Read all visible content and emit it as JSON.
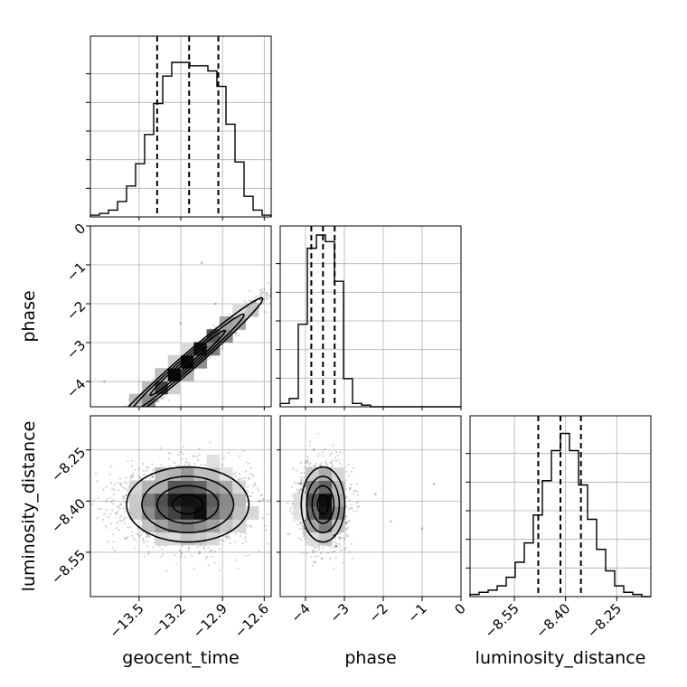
{
  "chart_data": {
    "type": "corner",
    "parameters": [
      {
        "name": "geocent_time",
        "label": "geocent_time",
        "range": [
          -13.85,
          -12.55
        ],
        "ticks": [
          -13.5,
          -13.2,
          -12.9,
          -12.6
        ],
        "tick_labels": [
          "−13.5",
          "−13.2",
          "−12.9",
          "−12.6"
        ],
        "quantiles": [
          -13.37,
          -13.14,
          -12.93
        ],
        "hist": [
          1,
          2,
          4,
          9,
          18,
          31,
          48,
          66,
          82,
          90,
          90,
          88,
          88,
          85,
          76,
          54,
          32,
          12,
          4,
          1
        ],
        "hist_max": 100
      },
      {
        "name": "phase",
        "label": "phase",
        "range": [
          -4.65,
          0.0
        ],
        "ticks": [
          -4,
          -3,
          -2,
          -1,
          0
        ],
        "tick_labels": [
          "−4",
          "−3",
          "−2",
          "−1",
          "0"
        ],
        "quantiles": [
          -3.85,
          -3.55,
          -3.25
        ],
        "hist": [
          2,
          5,
          50,
          96,
          104,
          100,
          76,
          17,
          2,
          1,
          0,
          0,
          0,
          0,
          0,
          0,
          0,
          0,
          0,
          0
        ],
        "hist_max": 104
      },
      {
        "name": "luminosity_distance",
        "label": "luminosity_distance",
        "range": [
          -8.68,
          -8.15
        ],
        "ticks": [
          -8.55,
          -8.4,
          -8.25
        ],
        "tick_labels": [
          "−8.55",
          "−8.40",
          "−8.25"
        ],
        "quantiles": [
          -8.48,
          -8.415,
          -8.355
        ],
        "hist": [
          1,
          2,
          3,
          5,
          9,
          16,
          25,
          38,
          54,
          68,
          76,
          68,
          52,
          36,
          22,
          12,
          5,
          2,
          1,
          0
        ],
        "hist_max": 80
      }
    ],
    "pairs": [
      {
        "x": "geocent_time",
        "y": "phase",
        "mean": [
          -13.15,
          -3.52
        ],
        "sigma_major": 0.27,
        "sigma_minor": 0.1,
        "correlation": "positive",
        "outliers": [
          [
            -13.05,
            -0.95
          ],
          [
            -13.2,
            -2.5
          ],
          [
            -12.95,
            -2.0
          ],
          [
            -13.75,
            -4.0
          ]
        ]
      },
      {
        "x": "geocent_time",
        "y": "luminosity_distance",
        "mean": [
          -13.15,
          -8.41
        ],
        "sigma_x": 0.22,
        "sigma_y": 0.055,
        "correlation": "none"
      },
      {
        "x": "phase",
        "y": "luminosity_distance",
        "mean": [
          -3.55,
          -8.41
        ],
        "sigma_x": 0.28,
        "sigma_y": 0.055,
        "correlation": "none",
        "outliers": [
          [
            -1.8,
            -8.46
          ],
          [
            -1.0,
            -8.48
          ],
          [
            -2.2,
            -8.38
          ],
          [
            -0.7,
            -8.35
          ]
        ]
      }
    ],
    "grid": true,
    "quantile_lines": "dashed"
  }
}
